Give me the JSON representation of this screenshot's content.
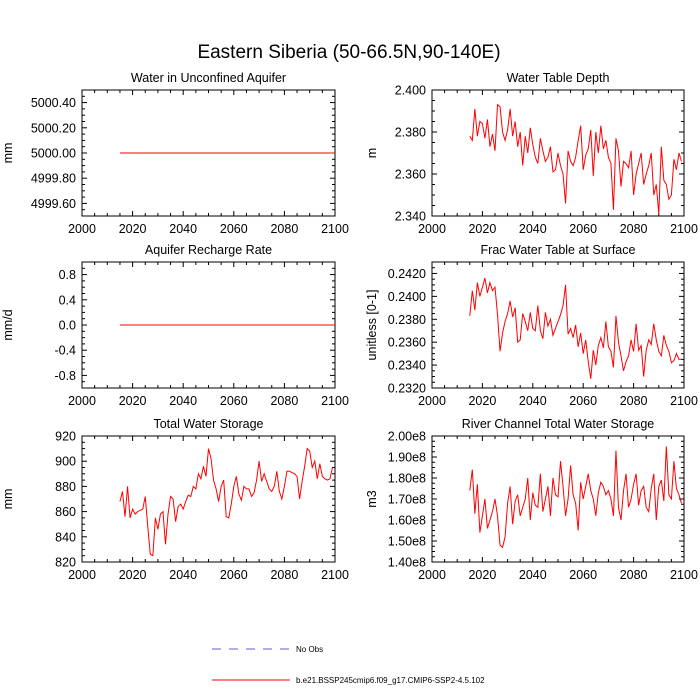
{
  "figure": {
    "title": "Eastern Siberia (50-66.5N,90-140E)",
    "legend": {
      "entries": [
        {
          "label": "No Obs",
          "style": "dashed",
          "color": "#6a5acd"
        },
        {
          "label": "b.e21.BSSP245cmip6.f09_g17.CMIP6-SSP2-4.5.102",
          "style": "solid",
          "color": "#ff0000"
        }
      ]
    }
  },
  "chart_data": [
    {
      "type": "line",
      "title": "Water in Unconfined Aquifer",
      "xlabel": "",
      "ylabel": "mm",
      "xlim": [
        2000,
        2100
      ],
      "ylim": [
        4999.5,
        5000.5
      ],
      "xticks": [
        2000,
        2020,
        2040,
        2060,
        2080,
        2100
      ],
      "xtick_labels": [
        "2000",
        "2020",
        "2040",
        "2060",
        "2080",
        "2100"
      ],
      "yticks": [
        4999.6,
        4999.8,
        5000.0,
        5000.2,
        5000.4
      ],
      "ytick_labels": [
        "4999.60",
        "4999.80",
        "5000.00",
        "5000.20",
        "5000.40"
      ],
      "series": [
        {
          "name": "b.e21.BSSP245cmip6.f09_g17.CMIP6-SSP2-4.5.102",
          "color": "#ff0000",
          "x": [
            2015,
            2100
          ],
          "values": [
            5000.0,
            5000.0
          ]
        }
      ]
    },
    {
      "type": "line",
      "title": "Water Table Depth",
      "xlabel": "",
      "ylabel": "m",
      "xlim": [
        2000,
        2100
      ],
      "ylim": [
        2.34,
        2.4
      ],
      "xticks": [
        2000,
        2020,
        2040,
        2060,
        2080,
        2100
      ],
      "xtick_labels": [
        "2000",
        "2020",
        "2040",
        "2060",
        "2080",
        "2100"
      ],
      "yticks": [
        2.34,
        2.36,
        2.38,
        2.4
      ],
      "ytick_labels": [
        "2.340",
        "2.360",
        "2.380",
        "2.400"
      ],
      "series": [
        {
          "name": "b.e21.BSSP245cmip6.f09_g17.CMIP6-SSP2-4.5.102",
          "color": "#ff0000",
          "x_start": 2015,
          "values": [
            2.378,
            2.376,
            2.391,
            2.378,
            2.385,
            2.384,
            2.377,
            2.386,
            2.373,
            2.379,
            2.371,
            2.393,
            2.392,
            2.38,
            2.376,
            2.381,
            2.391,
            2.378,
            2.385,
            2.373,
            2.38,
            2.364,
            2.378,
            2.37,
            2.382,
            2.374,
            2.368,
            2.365,
            2.377,
            2.371,
            2.366,
            2.368,
            2.373,
            2.361,
            2.362,
            2.37,
            2.364,
            2.36,
            2.346,
            2.371,
            2.366,
            2.364,
            2.368,
            2.376,
            2.383,
            2.362,
            2.369,
            2.372,
            2.381,
            2.359,
            2.38,
            2.37,
            2.383,
            2.372,
            2.376,
            2.368,
            2.365,
            2.343,
            2.377,
            2.371,
            2.354,
            2.366,
            2.365,
            2.363,
            2.371,
            2.35,
            2.36,
            2.365,
            2.37,
            2.355,
            2.36,
            2.364,
            2.37,
            2.35,
            2.355,
            2.341,
            2.373,
            2.357,
            2.355,
            2.348,
            2.35,
            2.367,
            2.362,
            2.37,
            2.366
          ]
        }
      ]
    },
    {
      "type": "line",
      "title": "Aquifer Recharge Rate",
      "xlabel": "",
      "ylabel": "mm/d",
      "xlim": [
        2000,
        2100
      ],
      "ylim": [
        -1.0,
        1.0
      ],
      "xticks": [
        2000,
        2020,
        2040,
        2060,
        2080,
        2100
      ],
      "xtick_labels": [
        "2000",
        "2020",
        "2040",
        "2060",
        "2080",
        "2100"
      ],
      "yticks": [
        -0.8,
        -0.4,
        0.0,
        0.4,
        0.8
      ],
      "ytick_labels": [
        "-0.8",
        "-0.4",
        "0.0",
        "0.4",
        "0.8"
      ],
      "series": [
        {
          "name": "b.e21.BSSP245cmip6.f09_g17.CMIP6-SSP2-4.5.102",
          "color": "#ff0000",
          "x": [
            2015,
            2100
          ],
          "values": [
            0.0,
            0.0
          ]
        }
      ]
    },
    {
      "type": "line",
      "title": "Frac Water Table at Surface",
      "xlabel": "",
      "ylabel": "unitless [0-1]",
      "xlim": [
        2000,
        2100
      ],
      "ylim": [
        0.232,
        0.243
      ],
      "xticks": [
        2000,
        2020,
        2040,
        2060,
        2080,
        2100
      ],
      "xtick_labels": [
        "2000",
        "2020",
        "2040",
        "2060",
        "2080",
        "2100"
      ],
      "yticks": [
        0.232,
        0.234,
        0.236,
        0.238,
        0.24,
        0.242
      ],
      "ytick_labels": [
        "0.2320",
        "0.2340",
        "0.2360",
        "0.2380",
        "0.2400",
        "0.2420"
      ],
      "series": [
        {
          "name": "b.e21.BSSP245cmip6.f09_g17.CMIP6-SSP2-4.5.102",
          "color": "#ff0000",
          "x_start": 2015,
          "values": [
            0.2383,
            0.2405,
            0.2388,
            0.2412,
            0.24,
            0.2408,
            0.2416,
            0.2403,
            0.2412,
            0.2405,
            0.2408,
            0.2384,
            0.2352,
            0.2368,
            0.2378,
            0.2385,
            0.2396,
            0.2382,
            0.239,
            0.236,
            0.2362,
            0.2385,
            0.2378,
            0.237,
            0.2386,
            0.2372,
            0.237,
            0.2392,
            0.237,
            0.2363,
            0.2386,
            0.2374,
            0.238,
            0.2366,
            0.2372,
            0.2378,
            0.2384,
            0.2392,
            0.241,
            0.2367,
            0.2372,
            0.2364,
            0.2375,
            0.2356,
            0.2368,
            0.235,
            0.2362,
            0.2343,
            0.2328,
            0.2353,
            0.234,
            0.2357,
            0.2364,
            0.2355,
            0.2378,
            0.2356,
            0.2352,
            0.2338,
            0.2383,
            0.236,
            0.2348,
            0.2335,
            0.2343,
            0.2348,
            0.2362,
            0.2352,
            0.2376,
            0.2353,
            0.2357,
            0.233,
            0.2353,
            0.2362,
            0.2358,
            0.2376,
            0.2362,
            0.2352,
            0.2348,
            0.2366,
            0.2357,
            0.2352,
            0.2342,
            0.2344,
            0.235,
            0.2345,
            0.2345
          ]
        }
      ]
    },
    {
      "type": "line",
      "title": "Total Water Storage",
      "xlabel": "",
      "ylabel": "mm",
      "xlim": [
        2000,
        2100
      ],
      "ylim": [
        820,
        920
      ],
      "xticks": [
        2000,
        2020,
        2040,
        2060,
        2080,
        2100
      ],
      "xtick_labels": [
        "2000",
        "2020",
        "2040",
        "2060",
        "2080",
        "2100"
      ],
      "yticks": [
        820,
        840,
        860,
        880,
        900,
        920
      ],
      "ytick_labels": [
        "820",
        "840",
        "860",
        "880",
        "900",
        "920"
      ],
      "series": [
        {
          "name": "b.e21.BSSP245cmip6.f09_g17.CMIP6-SSP2-4.5.102",
          "color": "#ff0000",
          "x_start": 2015,
          "values": [
            868,
            876,
            856,
            880,
            855,
            862,
            858,
            860,
            861,
            862,
            872,
            848,
            826,
            825,
            855,
            846,
            858,
            860,
            834,
            858,
            872,
            870,
            852,
            864,
            866,
            862,
            868,
            873,
            872,
            880,
            878,
            890,
            886,
            896,
            888,
            910,
            902,
            885,
            878,
            868,
            880,
            885,
            856,
            855,
            866,
            880,
            888,
            874,
            869,
            880,
            878,
            878,
            872,
            875,
            885,
            900,
            884,
            890,
            884,
            878,
            876,
            880,
            892,
            876,
            870,
            880,
            892,
            892,
            891,
            890,
            888,
            870,
            884,
            896,
            910,
            908,
            895,
            900,
            886,
            898,
            888,
            886,
            885,
            886,
            895
          ]
        }
      ]
    },
    {
      "type": "line",
      "title": "River Channel Total Water Storage",
      "xlabel": "",
      "ylabel": "m3",
      "xlim": [
        2000,
        2100
      ],
      "ylim": [
        140000000.0,
        200000000.0
      ],
      "xticks": [
        2000,
        2020,
        2040,
        2060,
        2080,
        2100
      ],
      "xtick_labels": [
        "2000",
        "2020",
        "2040",
        "2060",
        "2080",
        "2100"
      ],
      "yticks": [
        140000000.0,
        150000000.0,
        160000000.0,
        170000000.0,
        180000000.0,
        190000000.0,
        200000000.0
      ],
      "ytick_labels": [
        "1.40e8",
        "1.50e8",
        "1.60e8",
        "1.70e8",
        "1.80e8",
        "1.90e8",
        "2.00e8"
      ],
      "series": [
        {
          "name": "b.e21.BSSP245cmip6.f09_g17.CMIP6-SSP2-4.5.102",
          "color": "#ff0000",
          "x_start": 2015,
          "values": [
            174000000.0,
            184000000.0,
            163000000.0,
            177000000.0,
            154000000.0,
            162000000.0,
            170000000.0,
            156000000.0,
            160000000.0,
            164000000.0,
            170000000.0,
            162000000.0,
            148000000.0,
            147000000.0,
            152000000.0,
            168000000.0,
            176000000.0,
            158000000.0,
            169000000.0,
            172000000.0,
            162000000.0,
            166000000.0,
            170000000.0,
            180000000.0,
            160000000.0,
            173000000.0,
            167000000.0,
            166000000.0,
            182000000.0,
            164000000.0,
            170000000.0,
            176000000.0,
            162000000.0,
            180000000.0,
            172000000.0,
            171000000.0,
            188000000.0,
            176000000.0,
            162000000.0,
            170000000.0,
            186000000.0,
            172000000.0,
            168000000.0,
            155000000.0,
            178000000.0,
            170000000.0,
            176000000.0,
            182000000.0,
            174000000.0,
            170000000.0,
            162000000.0,
            173000000.0,
            178000000.0,
            176000000.0,
            172000000.0,
            174000000.0,
            170000000.0,
            162000000.0,
            193000000.0,
            166000000.0,
            160000000.0,
            174000000.0,
            182000000.0,
            166000000.0,
            170000000.0,
            177000000.0,
            182000000.0,
            167000000.0,
            174000000.0,
            176000000.0,
            166000000.0,
            164000000.0,
            175000000.0,
            182000000.0,
            160000000.0,
            176000000.0,
            179000000.0,
            169000000.0,
            195000000.0,
            172000000.0,
            170000000.0,
            188000000.0,
            175000000.0,
            172000000.0,
            168000000.0
          ]
        }
      ]
    }
  ]
}
